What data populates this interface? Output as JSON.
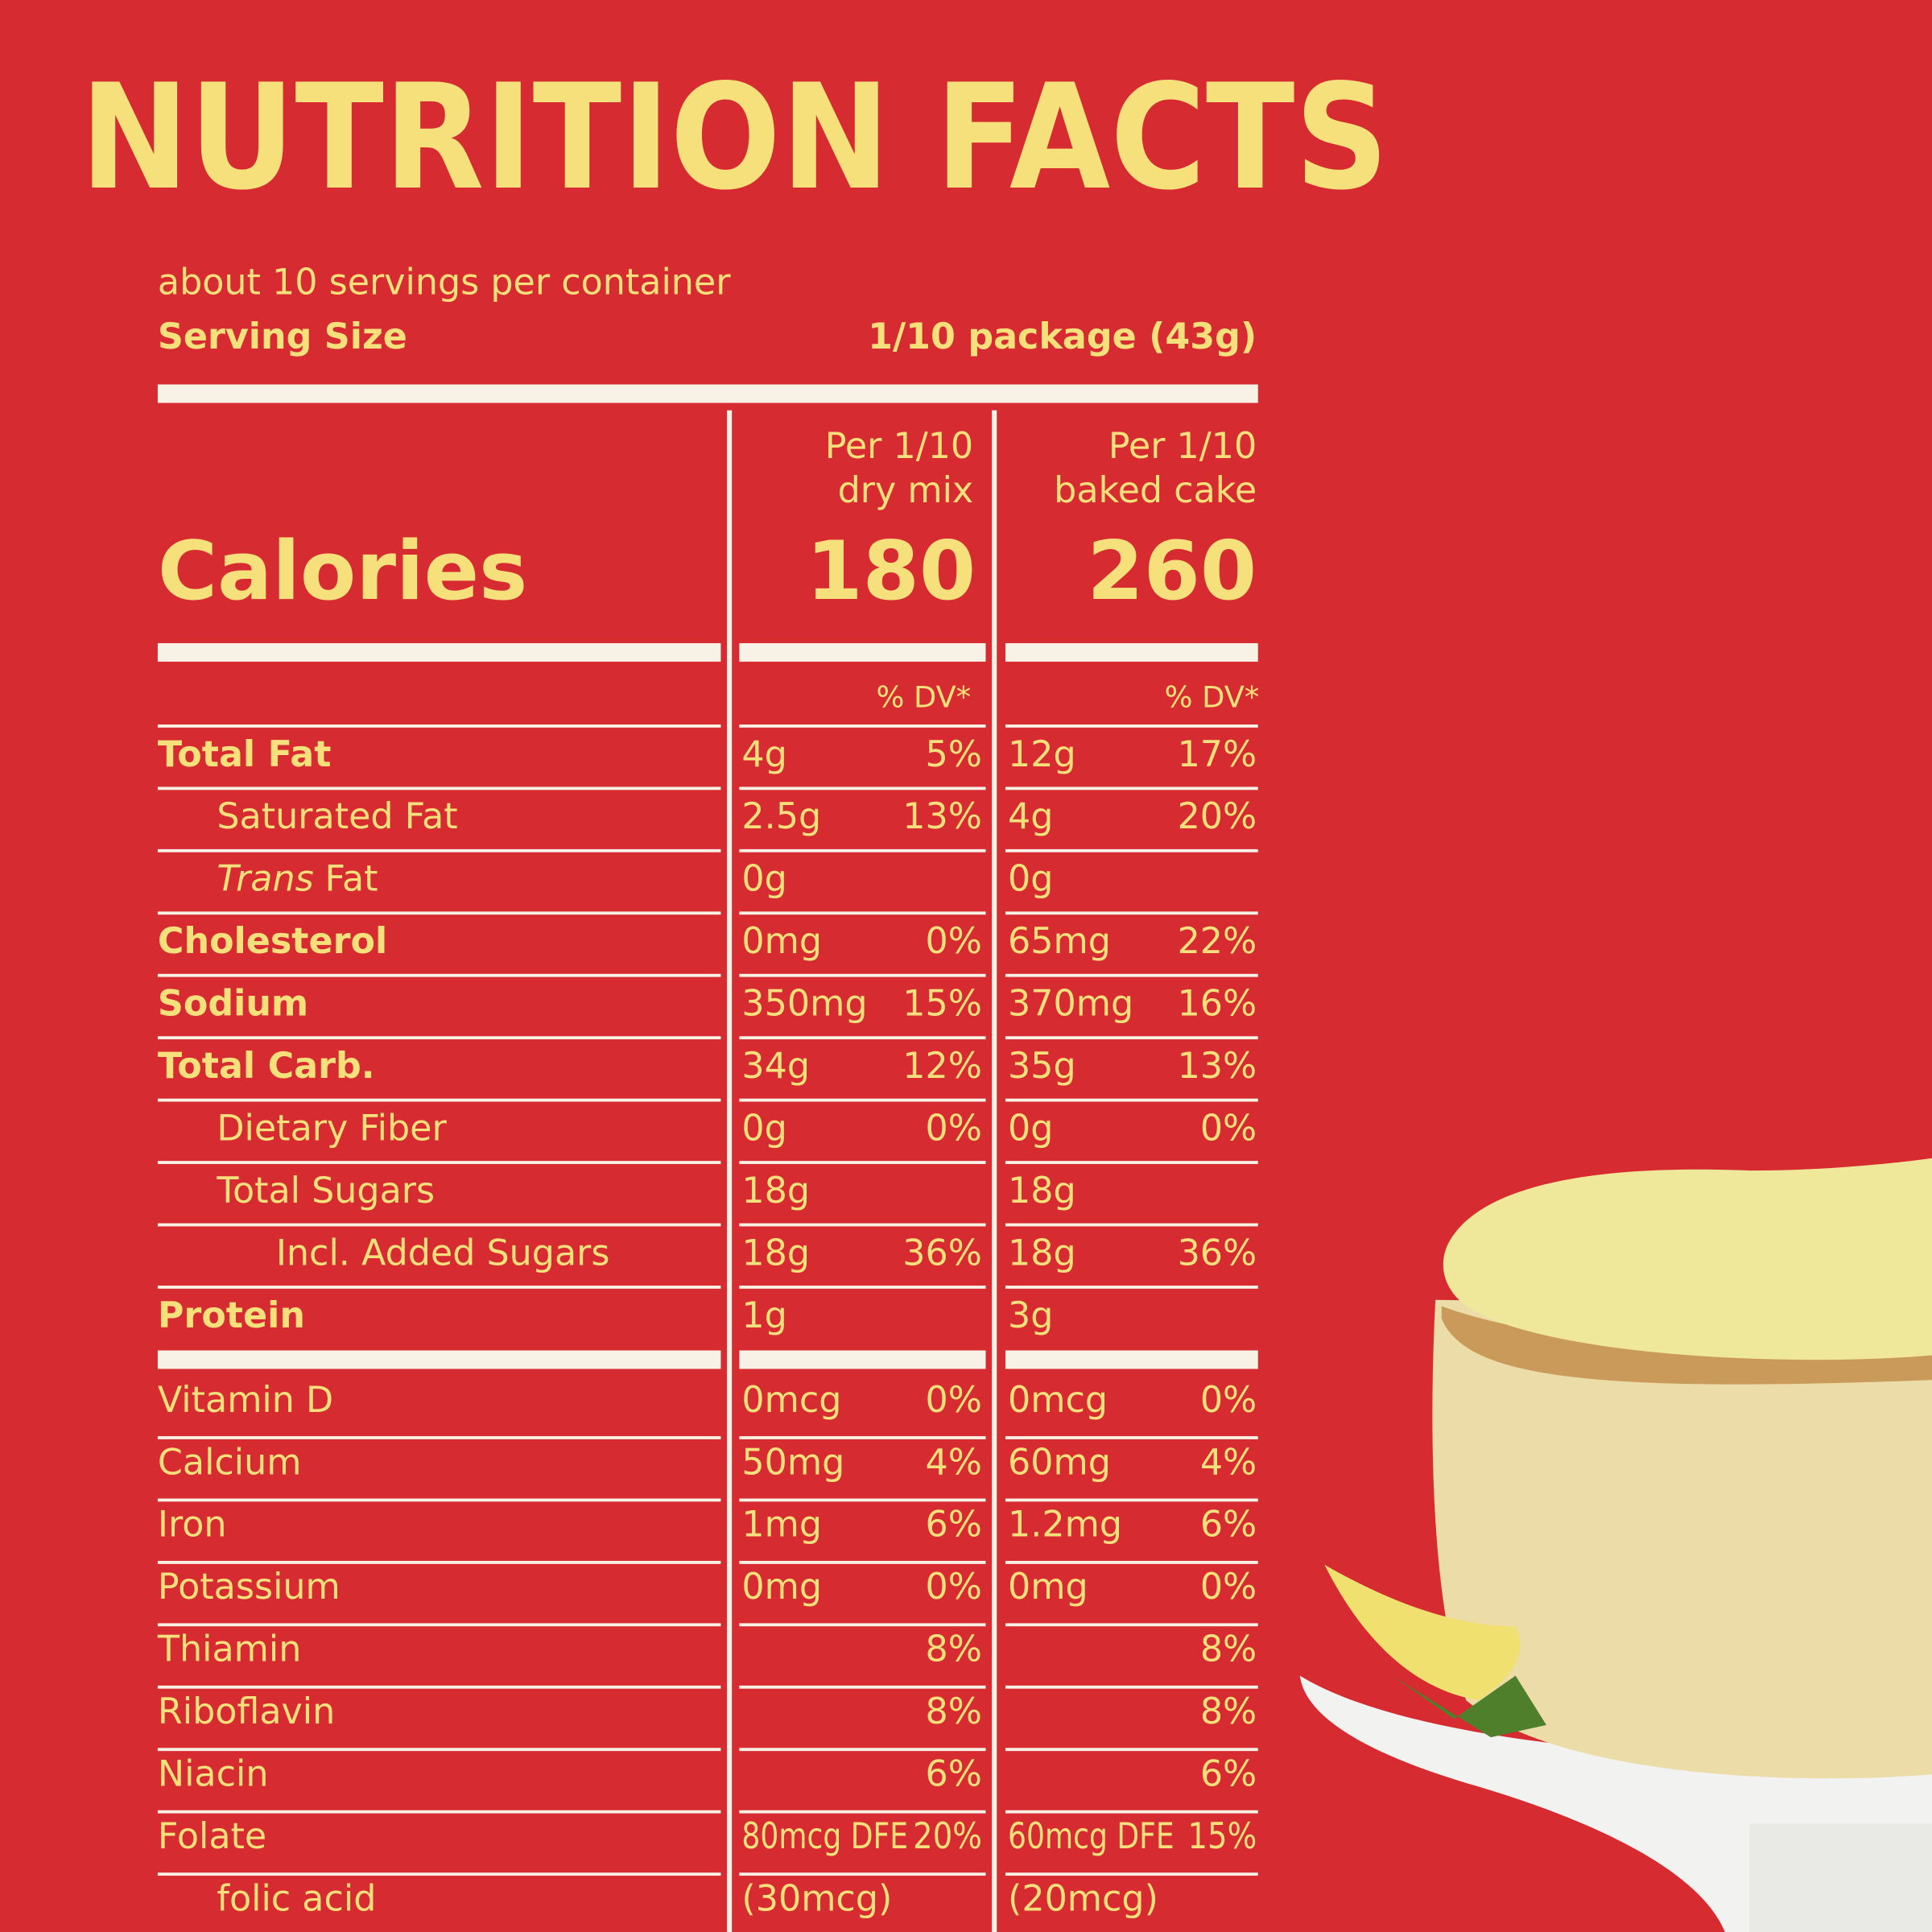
{
  "title": "NUTRITION  FACTS",
  "servings": "about 10 servings per container",
  "serving_size": {
    "label": "Serving Size",
    "value": "1/10 package (43g)"
  },
  "columns": [
    [
      "Per 1/10",
      "dry mix"
    ],
    [
      "Per 1/10",
      "baked cake"
    ]
  ],
  "calories": {
    "label": "Calories",
    "values": [
      "180",
      "260"
    ]
  },
  "dv_header": "% DV*",
  "rows": [
    {
      "label": "Total Fat",
      "dry": [
        "4g",
        "5%"
      ],
      "baked": [
        "12g",
        "17%"
      ]
    },
    {
      "label": "Saturated Fat",
      "dry": [
        "2.5g",
        "13%"
      ],
      "baked": [
        "4g",
        "20%"
      ]
    },
    {
      "label_italic": "Trans",
      "label": "Fat",
      "dry": [
        "0g",
        null
      ],
      "baked": [
        "0g",
        null
      ]
    },
    {
      "label": "Cholesterol",
      "dry": [
        "0mg",
        "0%"
      ],
      "baked": [
        "65mg",
        "22%"
      ]
    },
    {
      "label": "Sodium",
      "dry": [
        "350mg",
        "15%"
      ],
      "baked": [
        "370mg",
        "16%"
      ]
    },
    {
      "label": "Total Carb.",
      "dry": [
        "34g",
        "12%"
      ],
      "baked": [
        "35g",
        "13%"
      ]
    },
    {
      "label": "Dietary Fiber",
      "dry": [
        "0g",
        "0%"
      ],
      "baked": [
        "0g",
        "0%"
      ]
    },
    {
      "label": "Total Sugars",
      "dry": [
        "18g",
        null
      ],
      "baked": [
        "18g",
        null
      ]
    },
    {
      "label": "Incl. Added Sugars",
      "dry": [
        "18g",
        "36%"
      ],
      "baked": [
        "18g",
        "36%"
      ]
    },
    {
      "label": "Protein",
      "dry": [
        "1g",
        null
      ],
      "baked": [
        "3g",
        null
      ]
    },
    {
      "label": "Vitamin D",
      "dry": [
        "0mcg",
        "0%"
      ],
      "baked": [
        "0mcg",
        "0%"
      ]
    },
    {
      "label": "Calcium",
      "dry": [
        "50mg",
        "4%"
      ],
      "baked": [
        "60mg",
        "4%"
      ]
    },
    {
      "label": "Iron",
      "dry": [
        "1mg",
        "6%"
      ],
      "baked": [
        "1.2mg",
        "6%"
      ]
    },
    {
      "label": "Potassium",
      "dry": [
        "0mg",
        "0%"
      ],
      "baked": [
        "0mg",
        "0%"
      ]
    },
    {
      "label": "Thiamin",
      "dry": [
        null,
        "8%"
      ],
      "baked": [
        null,
        "8%"
      ]
    },
    {
      "label": "Riboflavin",
      "dry": [
        null,
        "8%"
      ],
      "baked": [
        null,
        "8%"
      ]
    },
    {
      "label": "Niacin",
      "dry": [
        null,
        "6%"
      ],
      "baked": [
        null,
        "6%"
      ]
    },
    {
      "label": "Folate",
      "dry": [
        "80mcg DFE",
        "20%"
      ],
      "baked": [
        "60mcg DFE",
        "15%"
      ]
    },
    {
      "label": "folic acid",
      "dry": [
        "(30mcg)",
        null
      ],
      "baked": [
        "(20mcg)",
        null
      ]
    }
  ]
}
